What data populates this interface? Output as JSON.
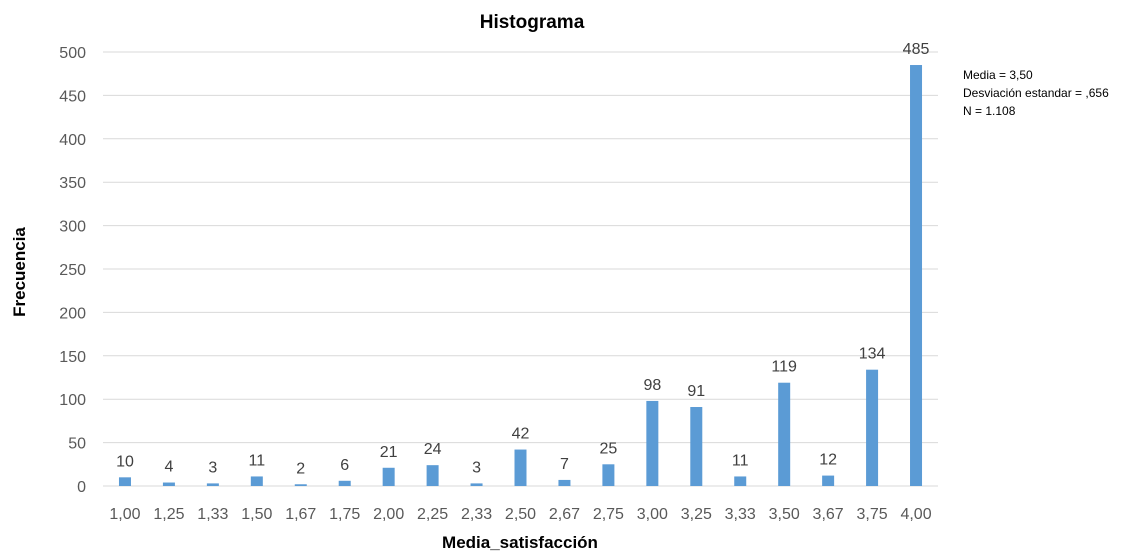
{
  "chart_data": {
    "type": "bar",
    "title": "Histograma",
    "xlabel": "Media_satisfacción",
    "ylabel": "Frecuencia",
    "ylim": [
      0,
      500
    ],
    "yticks": [
      0,
      50,
      100,
      150,
      200,
      250,
      300,
      350,
      400,
      450,
      500
    ],
    "grid": true,
    "bar_color": "#5b9bd5",
    "categories": [
      "1,00",
      "1,25",
      "1,33",
      "1,50",
      "1,67",
      "1,75",
      "2,00",
      "2,25",
      "2,33",
      "2,50",
      "2,67",
      "2,75",
      "3,00",
      "3,25",
      "3,33",
      "3,50",
      "3,67",
      "3,75",
      "4,00"
    ],
    "values": [
      10,
      4,
      3,
      11,
      2,
      6,
      21,
      24,
      3,
      42,
      7,
      25,
      98,
      91,
      11,
      119,
      12,
      134,
      485
    ],
    "annotations": [
      "Media = 3,50",
      "Desviación estandar = ,656",
      "N = 1.108"
    ]
  }
}
